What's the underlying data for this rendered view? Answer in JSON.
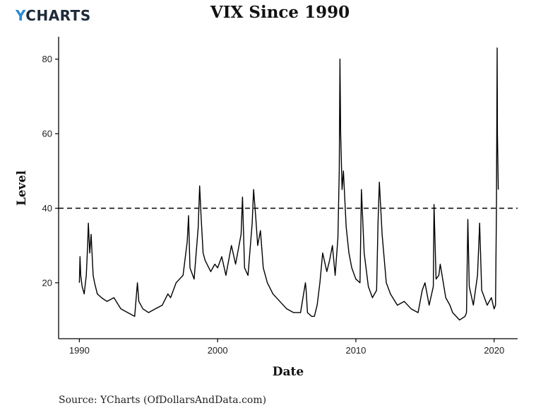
{
  "header": {
    "logo_prefix": "Y",
    "logo_rest": "CHARTS",
    "title": "VIX Since 1990"
  },
  "footer": {
    "source": "Source: YCharts (OfDollarsAndData.com)"
  },
  "colors": {
    "line": "#000000",
    "logo_accent": "#2a8bd8",
    "logo_text": "#1d2b3a"
  },
  "chart_data": {
    "type": "line",
    "title": "VIX Since 1990",
    "xlabel": "Date",
    "ylabel": "Level",
    "xlim": [
      1988.5,
      2021.7
    ],
    "ylim": [
      5,
      86
    ],
    "x_ticks": [
      1990,
      2000,
      2010,
      2020
    ],
    "y_ticks": [
      20,
      40,
      60,
      80
    ],
    "grid": false,
    "reference_line": {
      "y": 40,
      "style": "dashed"
    },
    "series": [
      {
        "x": [
          1990.0,
          1990.05,
          1990.1,
          1990.2,
          1990.35,
          1990.5,
          1990.6,
          1990.65,
          1990.75,
          1990.85,
          1991.0,
          1991.1,
          1991.3,
          1991.6,
          1992.0,
          1992.5,
          1993.0,
          1993.5,
          1994.0,
          1994.2,
          1994.3,
          1994.6,
          1995.0,
          1995.5,
          1996.0,
          1996.4,
          1996.6,
          1997.0,
          1997.5,
          1997.8,
          1997.9,
          1998.0,
          1998.3,
          1998.6,
          1998.7,
          1998.8,
          1998.95,
          1999.1,
          1999.5,
          1999.8,
          2000.0,
          2000.3,
          2000.6,
          2001.0,
          2001.3,
          2001.7,
          2001.8,
          2001.95,
          2002.2,
          2002.5,
          2002.6,
          2002.75,
          2002.9,
          2003.1,
          2003.3,
          2003.6,
          2004.0,
          2004.5,
          2005.0,
          2005.5,
          2006.0,
          2006.35,
          2006.4,
          2006.5,
          2006.8,
          2007.0,
          2007.2,
          2007.4,
          2007.6,
          2007.9,
          2008.1,
          2008.3,
          2008.5,
          2008.7,
          2008.8,
          2008.85,
          2008.9,
          2009.0,
          2009.1,
          2009.3,
          2009.5,
          2009.7,
          2010.0,
          2010.3,
          2010.4,
          2010.6,
          2010.9,
          2011.2,
          2011.5,
          2011.6,
          2011.7,
          2011.9,
          2012.2,
          2012.5,
          2013.0,
          2013.5,
          2014.0,
          2014.5,
          2014.8,
          2015.0,
          2015.3,
          2015.6,
          2015.65,
          2015.8,
          2016.0,
          2016.1,
          2016.5,
          2016.8,
          2017.0,
          2017.5,
          2017.9,
          2018.0,
          2018.1,
          2018.2,
          2018.5,
          2018.8,
          2018.95,
          2019.1,
          2019.5,
          2019.8,
          2020.0,
          2020.1,
          2020.17,
          2020.22,
          2020.24,
          2020.3
        ],
        "y": [
          20,
          27,
          22,
          19,
          17,
          22,
          30,
          36,
          28,
          33,
          22,
          20,
          17,
          16,
          15,
          16,
          13,
          12,
          11,
          20,
          15,
          13,
          12,
          13,
          14,
          17,
          16,
          20,
          22,
          31,
          38,
          24,
          21,
          35,
          46,
          38,
          28,
          26,
          23,
          25,
          24,
          27,
          22,
          30,
          25,
          33,
          43,
          24,
          22,
          36,
          45,
          38,
          30,
          34,
          24,
          20,
          17,
          15,
          13,
          12,
          12,
          20,
          18,
          12,
          11,
          11,
          14,
          20,
          28,
          23,
          26,
          30,
          22,
          32,
          50,
          80,
          60,
          45,
          50,
          35,
          28,
          24,
          21,
          20,
          45,
          28,
          19,
          16,
          18,
          36,
          47,
          33,
          20,
          17,
          14,
          15,
          13,
          12,
          18,
          20,
          14,
          19,
          41,
          21,
          22,
          25,
          16,
          14,
          12,
          10,
          11,
          12,
          37,
          19,
          14,
          22,
          36,
          18,
          14,
          16,
          13,
          14,
          40,
          83,
          60,
          45
        ]
      }
    ]
  }
}
